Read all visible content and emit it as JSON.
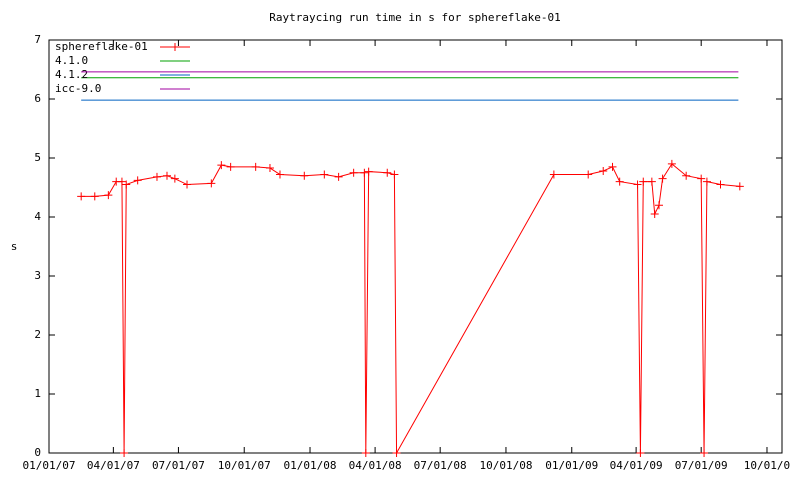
{
  "chart_data": {
    "type": "line",
    "title": "Raytraycing run time in s for sphereflake-01",
    "y_label": "s",
    "xlim": [
      "2007-01-01",
      "2009-10-22"
    ],
    "xticks": [
      {
        "value": "2007-01-01",
        "label": "01/01/07"
      },
      {
        "value": "2007-04-01",
        "label": "04/01/07"
      },
      {
        "value": "2007-07-01",
        "label": "07/01/07"
      },
      {
        "value": "2007-10-01",
        "label": "10/01/07"
      },
      {
        "value": "2008-01-01",
        "label": "01/01/08"
      },
      {
        "value": "2008-04-01",
        "label": "04/01/08"
      },
      {
        "value": "2008-07-01",
        "label": "07/01/08"
      },
      {
        "value": "2008-10-01",
        "label": "10/01/08"
      },
      {
        "value": "2009-01-01",
        "label": "01/01/09"
      },
      {
        "value": "2009-04-01",
        "label": "04/01/09"
      },
      {
        "value": "2009-07-01",
        "label": "07/01/09"
      },
      {
        "value": "2009-10-01",
        "label": "10/01/0"
      }
    ],
    "ylim": [
      0,
      7
    ],
    "yticks": [
      0,
      1,
      2,
      3,
      4,
      5,
      6,
      7
    ],
    "legend": "top-left",
    "series": [
      {
        "name": "sphereflake-01",
        "color": "#ff0000",
        "marker": "plus",
        "x": [
          "2007-02-15",
          "2007-03-06",
          "2007-03-25",
          "2007-04-05",
          "2007-04-13",
          "2007-04-16",
          "2007-04-19",
          "2007-05-05",
          "2007-06-01",
          "2007-06-15",
          "2007-06-26",
          "2007-07-13",
          "2007-08-16",
          "2007-08-30",
          "2007-09-12",
          "2007-10-17",
          "2007-11-06",
          "2007-11-20",
          "2007-12-24",
          "2008-01-21",
          "2008-02-10",
          "2008-03-02",
          "2008-03-17",
          "2008-03-19",
          "2008-03-23",
          "2008-04-18",
          "2008-04-28",
          "2008-05-01",
          "2008-12-07",
          "2009-01-24",
          "2009-02-14",
          "2009-02-27",
          "2009-03-09",
          "2009-04-03",
          "2009-04-07",
          "2009-04-11",
          "2009-04-23",
          "2009-04-27",
          "2009-05-03",
          "2009-05-08",
          "2009-05-21",
          "2009-06-10",
          "2009-07-01",
          "2009-07-05",
          "2009-07-09",
          "2009-07-28",
          "2009-08-24"
        ],
        "values": [
          4.35,
          4.35,
          4.37,
          4.6,
          4.6,
          0,
          4.55,
          4.62,
          4.68,
          4.7,
          4.65,
          4.55,
          4.57,
          4.88,
          4.85,
          4.85,
          4.83,
          4.72,
          4.7,
          4.72,
          4.68,
          4.75,
          4.75,
          0,
          4.77,
          4.75,
          4.72,
          0,
          4.72,
          4.72,
          4.78,
          4.85,
          4.6,
          4.55,
          0,
          4.6,
          4.6,
          4.05,
          4.2,
          4.65,
          4.9,
          4.7,
          4.65,
          0,
          4.6,
          4.55,
          4.52
        ]
      },
      {
        "name": "4.1.0",
        "color": "#00a000",
        "marker": "none",
        "x": [
          "2007-02-15",
          "2009-08-22"
        ],
        "values": [
          6.36,
          6.36
        ]
      },
      {
        "name": "4.1.2",
        "color": "#0060c0",
        "marker": "none",
        "x": [
          "2007-02-15",
          "2009-08-22"
        ],
        "values": [
          5.98,
          5.98
        ]
      },
      {
        "name": "icc-9.0",
        "color": "#a000a0",
        "marker": "none",
        "x": [
          "2007-02-15",
          "2009-08-22"
        ],
        "values": [
          6.46,
          6.46
        ]
      }
    ]
  }
}
